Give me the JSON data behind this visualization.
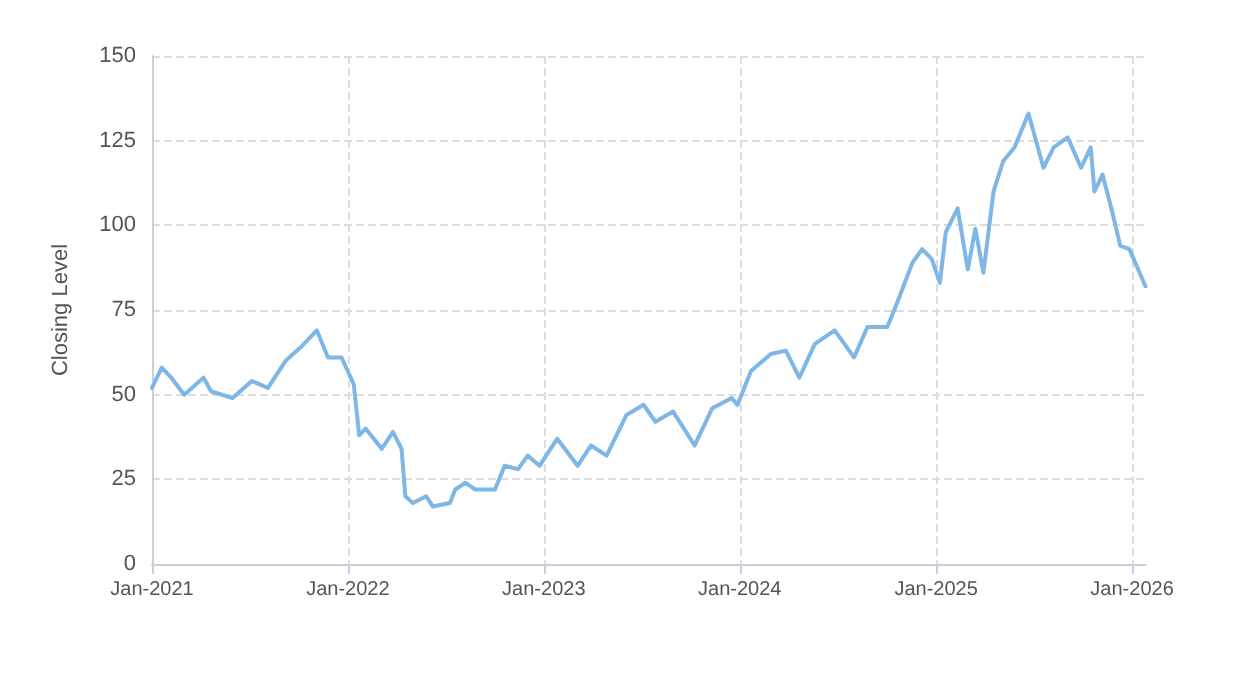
{
  "chart_data": {
    "type": "line",
    "ylabel": "Closing Level",
    "x": [
      "2021-01-01",
      "2021-01-19",
      "2021-02-06",
      "2021-03-02",
      "2021-04-07",
      "2021-04-21",
      "2021-05-31",
      "2021-07-06",
      "2021-08-05",
      "2021-09-07",
      "2021-10-05",
      "2021-11-04",
      "2021-11-25",
      "2021-12-20",
      "2022-01-12",
      "2022-01-22",
      "2022-02-03",
      "2022-03-05",
      "2022-03-26",
      "2022-04-11",
      "2022-04-18",
      "2022-05-02",
      "2022-05-27",
      "2022-06-08",
      "2022-07-10",
      "2022-07-20",
      "2022-08-08",
      "2022-08-26",
      "2022-10-02",
      "2022-10-20",
      "2022-11-14",
      "2022-12-02",
      "2022-12-24",
      "2023-01-26",
      "2023-03-05",
      "2023-03-30",
      "2023-04-28",
      "2023-06-04",
      "2023-07-06",
      "2023-07-28",
      "2023-08-30",
      "2023-10-09",
      "2023-11-11",
      "2023-12-17",
      "2023-12-28",
      "2024-01-22",
      "2024-02-28",
      "2024-03-27",
      "2024-04-21",
      "2024-05-20",
      "2024-06-26",
      "2024-08-01",
      "2024-08-26",
      "2024-10-02",
      "2024-10-20",
      "2024-11-18",
      "2024-12-06",
      "2024-12-24",
      "2025-01-08",
      "2025-01-19",
      "2025-02-10",
      "2025-03-01",
      "2025-03-15",
      "2025-03-30",
      "2025-04-18",
      "2025-05-06",
      "2025-05-27",
      "2025-06-22",
      "2025-07-20",
      "2025-08-08",
      "2025-09-03",
      "2025-09-28",
      "2025-10-16",
      "2025-10-23",
      "2025-11-07",
      "2025-11-25",
      "2025-12-10",
      "2025-12-27",
      "2026-01-26"
    ],
    "series": [
      {
        "color": "#7eb6e6",
        "values": [
          52,
          58,
          55,
          50,
          55,
          51,
          49,
          54,
          52,
          60,
          64,
          69,
          61,
          61,
          53,
          38,
          40,
          34,
          39,
          34,
          20,
          18,
          20,
          17,
          18,
          22,
          24,
          22,
          22,
          29,
          28,
          32,
          29,
          37,
          29,
          35,
          32,
          44,
          47,
          42,
          45,
          35,
          46,
          49,
          47,
          57,
          62,
          63,
          55,
          65,
          69,
          61,
          70,
          70,
          77,
          89,
          93,
          90,
          83,
          98,
          105,
          87,
          99,
          86,
          110,
          119,
          123,
          133,
          117,
          123,
          126,
          117,
          123,
          110,
          115,
          104,
          94,
          93,
          82
        ]
      }
    ],
    "xlim": [
      "2021-01-01",
      "2026-01-27"
    ],
    "xticks": [
      {
        "value": "2021-01-01",
        "label": "Jan-2021"
      },
      {
        "value": "2022-01-01",
        "label": "Jan-2022"
      },
      {
        "value": "2023-01-01",
        "label": "Jan-2023"
      },
      {
        "value": "2024-01-01",
        "label": "Jan-2024"
      },
      {
        "value": "2025-01-01",
        "label": "Jan-2025"
      },
      {
        "value": "2026-01-01",
        "label": "Jan-2026"
      }
    ],
    "ylim": [
      0,
      150
    ],
    "yticks": [
      0,
      25,
      50,
      75,
      100,
      125,
      150
    ],
    "grid": true,
    "marker": "none",
    "line_style": "solid"
  }
}
